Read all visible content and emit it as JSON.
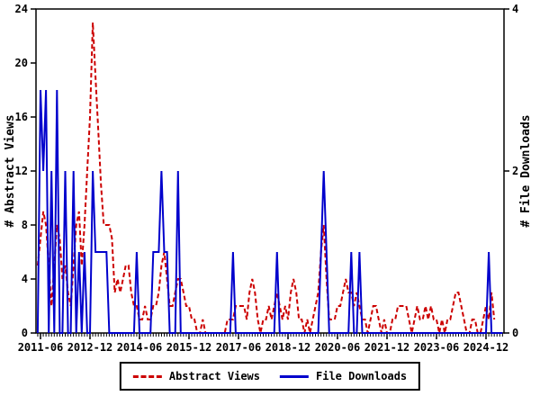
{
  "chart_data": {
    "type": "line",
    "title": "",
    "x_start": "2011-05",
    "x_interval": "monthly",
    "x_tick_labels": [
      "2011-06",
      "2012-12",
      "2014-06",
      "2015-12",
      "2017-06",
      "2018-12",
      "2020-06",
      "2021-12",
      "2023-06",
      "2024-12"
    ],
    "x_tick_indices": [
      1,
      19,
      37,
      55,
      73,
      91,
      109,
      127,
      145,
      163
    ],
    "left_axis": {
      "label": "# Abstract Views",
      "ticks": [
        0,
        4,
        8,
        12,
        16,
        20,
        24
      ],
      "range": [
        0,
        24
      ]
    },
    "right_axis": {
      "label": "# File Downloads",
      "ticks": [
        0,
        2,
        4
      ],
      "range": [
        0,
        4
      ]
    },
    "grid": false,
    "legend_position": "bottom-center",
    "series": [
      {
        "name": "Abstract Views",
        "color": "#cc0000",
        "style": "dashed",
        "axis": "left",
        "values": [
          5,
          7,
          9,
          8,
          5,
          2,
          5,
          8,
          7,
          4,
          5,
          3,
          2,
          5,
          8,
          9,
          5,
          8,
          12,
          16,
          23,
          19,
          15,
          11,
          8,
          8,
          8,
          7,
          3,
          4,
          3,
          4,
          5,
          5,
          3,
          2,
          2,
          1,
          1,
          2,
          1,
          1,
          2,
          2,
          3,
          5,
          6,
          4,
          2,
          2,
          3,
          4,
          4,
          3,
          2,
          2,
          1,
          1,
          0,
          0,
          1,
          0,
          0,
          0,
          0,
          0,
          0,
          0,
          0,
          1,
          1,
          1,
          2,
          2,
          2,
          2,
          1,
          3,
          4,
          3,
          1,
          0,
          1,
          1,
          2,
          1,
          2,
          3,
          2,
          1,
          2,
          1,
          3,
          4,
          3,
          1,
          1,
          0,
          1,
          0,
          1,
          2,
          3,
          6,
          8,
          4,
          1,
          1,
          1,
          2,
          2,
          3,
          4,
          3,
          3,
          2,
          3,
          2,
          1,
          1,
          0,
          1,
          2,
          2,
          1,
          0,
          1,
          0,
          0,
          1,
          1,
          2,
          2,
          2,
          2,
          1,
          0,
          1,
          2,
          1,
          1,
          2,
          1,
          2,
          1,
          1,
          0,
          1,
          0,
          1,
          1,
          2,
          3,
          3,
          2,
          1,
          0,
          0,
          1,
          1,
          0,
          0,
          1,
          2,
          1,
          3,
          1,
          null,
          null,
          null
        ]
      },
      {
        "name": "File Downloads",
        "color": "#0000cc",
        "style": "solid",
        "axis": "right",
        "values": [
          0,
          3,
          2,
          3,
          0,
          2,
          0,
          3,
          0,
          0,
          2,
          0,
          0,
          2,
          0,
          1,
          0,
          1,
          0,
          0,
          2,
          1,
          1,
          1,
          1,
          1,
          0,
          0,
          0,
          0,
          0,
          0,
          0,
          0,
          0,
          0,
          1,
          0,
          0,
          0,
          0,
          0,
          1,
          1,
          1,
          2,
          1,
          1,
          0,
          0,
          0,
          2,
          0,
          0,
          0,
          0,
          0,
          0,
          0,
          0,
          0,
          0,
          0,
          0,
          0,
          0,
          0,
          0,
          0,
          0,
          0,
          1,
          0,
          0,
          0,
          0,
          0,
          0,
          0,
          0,
          0,
          0,
          0,
          0,
          0,
          0,
          0,
          1,
          0,
          0,
          0,
          0,
          0,
          0,
          0,
          0,
          0,
          0,
          0,
          0,
          0,
          0,
          0,
          1,
          2,
          1,
          0,
          0,
          0,
          0,
          0,
          0,
          0,
          0,
          1,
          0,
          0,
          1,
          0,
          0,
          0,
          0,
          0,
          0,
          0,
          0,
          0,
          0,
          0,
          0,
          0,
          0,
          0,
          0,
          0,
          0,
          0,
          0,
          0,
          0,
          0,
          0,
          0,
          0,
          0,
          0,
          0,
          0,
          0,
          0,
          0,
          0,
          0,
          0,
          0,
          0,
          0,
          0,
          0,
          0,
          0,
          0,
          0,
          0,
          1,
          0,
          0,
          0,
          0,
          0
        ]
      }
    ]
  }
}
